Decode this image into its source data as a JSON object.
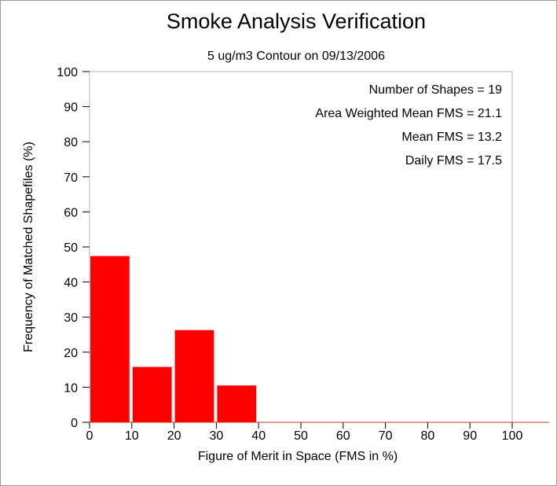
{
  "chart_data": {
    "type": "bar",
    "title": "Smoke Analysis Verification",
    "subtitle": "5 ug/m3 Contour on 09/13/2006",
    "xlabel": "Figure of Merit in Space (FMS in %)",
    "ylabel": "Frequency of Matched Shapefiles (%)",
    "xlim": [
      0,
      100
    ],
    "ylim": [
      0,
      100
    ],
    "x_ticks": [
      "0",
      "10",
      "20",
      "30",
      "40",
      "50",
      "60",
      "70",
      "80",
      "90",
      "100"
    ],
    "y_ticks": [
      "0",
      "10",
      "20",
      "30",
      "40",
      "50",
      "60",
      "70",
      "80",
      "90",
      "100"
    ],
    "bins": [
      {
        "start": 0,
        "end": 10,
        "value": 47.4
      },
      {
        "start": 10,
        "end": 20,
        "value": 15.8
      },
      {
        "start": 20,
        "end": 30,
        "value": 26.3
      },
      {
        "start": 30,
        "end": 40,
        "value": 10.5
      },
      {
        "start": 40,
        "end": 50,
        "value": 0
      },
      {
        "start": 50,
        "end": 60,
        "value": 0
      },
      {
        "start": 60,
        "end": 70,
        "value": 0
      },
      {
        "start": 70,
        "end": 80,
        "value": 0
      },
      {
        "start": 80,
        "end": 90,
        "value": 0
      },
      {
        "start": 90,
        "end": 100,
        "value": 0
      }
    ],
    "bar_color": "#ff0000",
    "grid": false,
    "annotations": [
      "Number of Shapes = 19",
      "Area Weighted Mean FMS = 21.1",
      "Mean FMS = 13.2",
      "Daily FMS = 17.5"
    ]
  }
}
